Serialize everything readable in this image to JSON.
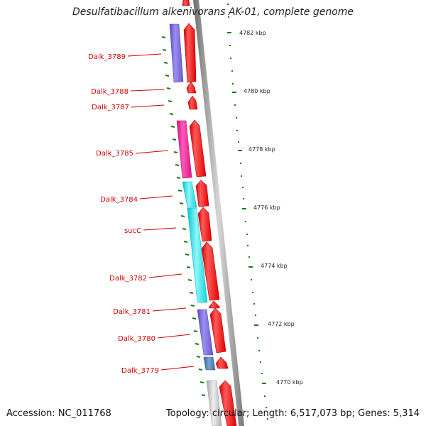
{
  "title": "Desulfatibacillum alkenivorans AK-01, complete genome",
  "footer": {
    "accession": "Accession: NC_011768",
    "info": "Topology: circular; Length: 6,517,073 bp; Genes: 5,314"
  },
  "colors": {
    "forward_strand": "#ff0000",
    "backbone": "#9a9a9a",
    "ticks": "#1a7a1a",
    "label_text": "#cc0000",
    "purple": "#7b68d6",
    "magenta": "#ee1590",
    "cyan": "#22e6ee",
    "steelblue": "#4a7ab8",
    "gray": "#c8c8c8"
  },
  "kbp_labels": [
    "4782 kbp",
    "4780 kbp",
    "4778 kbp",
    "4776 kbp",
    "4774 kbp",
    "4772 kbp",
    "4770 kbp"
  ],
  "gene_labels": [
    "Dalk_3789",
    "Dalk_3788",
    "Dalk_3787",
    "Dalk_3785",
    "Dalk_3784",
    "sucC",
    "Dalk_3782",
    "Dalk_3781",
    "Dalk_3780",
    "Dalk_3779"
  ]
}
